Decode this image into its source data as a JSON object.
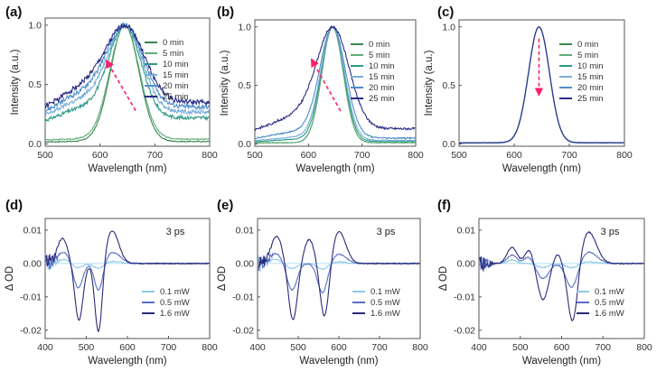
{
  "chart_data": [
    {
      "panel": "(a)",
      "type": "line",
      "xlabel": "Wavelength (nm)",
      "ylabel": "Intensity (a.u.)",
      "xlim": [
        500,
        800
      ],
      "ylim": [
        -0.02,
        1.06
      ],
      "xticks": [
        "500",
        "600",
        "700",
        "800"
      ],
      "yticks": [
        "0.0",
        "0.5",
        "1.0"
      ],
      "peak_nm": 645,
      "arrow": {
        "from": [
          665,
          0.28
        ],
        "to": [
          612,
          0.7
        ],
        "color": "#ff1f6b"
      },
      "series": [
        {
          "name": "0 min",
          "color": "#3c8550",
          "baseline": 0.02,
          "width": 26,
          "wing": 0.0,
          "noise": 0.004
        },
        {
          "name": "5 min",
          "color": "#5fae7a",
          "baseline": 0.04,
          "width": 27,
          "wing": 0.0,
          "noise": 0.005
        },
        {
          "name": "10 min",
          "color": "#2a9a86",
          "baseline": 0.22,
          "width": 29,
          "wing": 0.12,
          "noise": 0.015
        },
        {
          "name": "15 min",
          "color": "#7aaed8",
          "baseline": 0.27,
          "width": 31,
          "wing": 0.16,
          "noise": 0.018
        },
        {
          "name": "20 min",
          "color": "#4f8ec9",
          "baseline": 0.31,
          "width": 33,
          "wing": 0.19,
          "noise": 0.02
        },
        {
          "name": "25 min",
          "color": "#2b2d86",
          "baseline": 0.35,
          "width": 35,
          "wing": 0.22,
          "noise": 0.022
        }
      ]
    },
    {
      "panel": "(b)",
      "type": "line",
      "xlabel": "Wavelength (nm)",
      "ylabel": "Intensity (a.u.)",
      "xlim": [
        500,
        800
      ],
      "ylim": [
        -0.02,
        1.06
      ],
      "xticks": [
        "500",
        "600",
        "700",
        "800"
      ],
      "yticks": [
        "0.0",
        "0.5",
        "1.0"
      ],
      "peak_nm": 645,
      "arrow": {
        "from": [
          660,
          0.28
        ],
        "to": [
          606,
          0.72
        ],
        "color": "#ff1f6b"
      },
      "series": [
        {
          "name": "0 min",
          "color": "#3c8550",
          "baseline": 0.01,
          "width": 20,
          "wing": 0.0,
          "noise": 0.002
        },
        {
          "name": "5 min",
          "color": "#5fae7a",
          "baseline": 0.01,
          "width": 20,
          "wing": 0.0,
          "noise": 0.002
        },
        {
          "name": "10 min",
          "color": "#2a9a86",
          "baseline": 0.02,
          "width": 21,
          "wing": 0.02,
          "noise": 0.003
        },
        {
          "name": "15 min",
          "color": "#7aaed8",
          "baseline": 0.03,
          "width": 22,
          "wing": 0.03,
          "noise": 0.004
        },
        {
          "name": "20 min",
          "color": "#4f8ec9",
          "baseline": 0.05,
          "width": 24,
          "wing": 0.06,
          "noise": 0.006
        },
        {
          "name": "25 min",
          "color": "#2b2d86",
          "baseline": 0.13,
          "width": 30,
          "wing": 0.13,
          "noise": 0.01
        }
      ]
    },
    {
      "panel": "(c)",
      "type": "line",
      "xlabel": "Wavelength (nm)",
      "ylabel": "Intensity (a.u.)",
      "xlim": [
        500,
        800
      ],
      "ylim": [
        -0.02,
        1.06
      ],
      "xticks": [
        "500",
        "600",
        "700",
        "800"
      ],
      "yticks": [
        "0.0",
        "0.5",
        "1.0"
      ],
      "peak_nm": 645,
      "arrow": {
        "from": [
          645,
          0.9
        ],
        "to": [
          645,
          0.42
        ],
        "color": "#ff1f6b"
      },
      "series": [
        {
          "name": "0 min",
          "color": "#3c8550",
          "baseline": 0.01,
          "width": 19,
          "wing": 0.0,
          "noise": 0.002
        },
        {
          "name": "5 min",
          "color": "#5fae7a",
          "baseline": 0.01,
          "width": 19,
          "wing": 0.0,
          "noise": 0.002
        },
        {
          "name": "10 min",
          "color": "#2a9a86",
          "baseline": 0.01,
          "width": 19,
          "wing": 0.0,
          "noise": 0.002
        },
        {
          "name": "15 min",
          "color": "#7aaed8",
          "baseline": 0.01,
          "width": 19,
          "wing": 0.0,
          "noise": 0.002
        },
        {
          "name": "20 min",
          "color": "#4f8ec9",
          "baseline": 0.01,
          "width": 19,
          "wing": 0.0,
          "noise": 0.002
        },
        {
          "name": "25 min",
          "color": "#2b2d86",
          "baseline": 0.01,
          "width": 19,
          "wing": 0.0,
          "noise": 0.002
        }
      ]
    },
    {
      "panel": "(d)",
      "type": "line",
      "xlabel": "Wavelength (nm)",
      "ylabel": "Δ OD",
      "xlim": [
        400,
        800
      ],
      "ylim": [
        -0.0225,
        0.0135
      ],
      "xticks": [
        "400",
        "500",
        "600",
        "700",
        "800"
      ],
      "yticks": [
        "0.01",
        "0.00",
        "-0.01",
        "-0.02"
      ],
      "annotation": "3 ps",
      "series": [
        {
          "name": "0.1 mW",
          "color": "#8ec9ea",
          "features": [
            [
              445,
              0.0012,
              14
            ],
            [
              480,
              -0.0013,
              12
            ],
            [
              530,
              -0.0015,
              12
            ],
            [
              565,
              0.0006,
              18
            ]
          ]
        },
        {
          "name": "0.5 mW",
          "color": "#5a6fc2",
          "features": [
            [
              445,
              0.0034,
              14
            ],
            [
              480,
              -0.0075,
              11
            ],
            [
              530,
              -0.0085,
              10
            ],
            [
              565,
              0.0033,
              18
            ]
          ]
        },
        {
          "name": "1.6 mW",
          "color": "#2c2a78",
          "features": [
            [
              442,
              0.0075,
              13
            ],
            [
              482,
              -0.017,
              10
            ],
            [
              530,
              -0.0215,
              9
            ],
            [
              563,
              0.0098,
              16
            ]
          ]
        }
      ]
    },
    {
      "panel": "(e)",
      "type": "line",
      "xlabel": "Wavelength (nm)",
      "ylabel": "Δ OD",
      "xlim": [
        400,
        800
      ],
      "ylim": [
        -0.0225,
        0.0135
      ],
      "xticks": [
        "400",
        "500",
        "600",
        "700",
        "800"
      ],
      "yticks": [
        "0.01",
        "0.00",
        "-0.01",
        "-0.02"
      ],
      "annotation": "3 ps",
      "series": [
        {
          "name": "0.1 mW",
          "color": "#8ec9ea",
          "features": [
            [
              445,
              0.0012,
              14
            ],
            [
              485,
              -0.0015,
              13
            ],
            [
              560,
              -0.0017,
              13
            ],
            [
              600,
              0.0005,
              18
            ]
          ]
        },
        {
          "name": "0.5 mW",
          "color": "#5a6fc2",
          "features": [
            [
              445,
              0.003,
              14
            ],
            [
              485,
              -0.008,
              12
            ],
            [
              560,
              -0.009,
              12
            ],
            [
              600,
              0.0028,
              18
            ]
          ]
        },
        {
          "name": "1.6 mW",
          "color": "#2c2a78",
          "features": [
            [
              447,
              0.0082,
              14
            ],
            [
              487,
              -0.017,
              11
            ],
            [
              527,
              0.0072,
              13
            ],
            [
              565,
              -0.0168,
              11
            ],
            [
              600,
              0.0096,
              17
            ]
          ]
        }
      ]
    },
    {
      "panel": "(f)",
      "type": "line",
      "xlabel": "Wavelength (nm)",
      "ylabel": "Δ OD",
      "xlim": [
        400,
        800
      ],
      "ylim": [
        -0.0225,
        0.0135
      ],
      "xticks": [
        "400",
        "500",
        "600",
        "700",
        "800"
      ],
      "yticks": [
        "0.01",
        "0.00",
        "-0.01",
        "-0.02"
      ],
      "annotation": "3 ps",
      "series": [
        {
          "name": "0.1 mW",
          "color": "#8ec9ea",
          "features": [
            [
              480,
              0.001,
              12
            ],
            [
              555,
              -0.0012,
              14
            ],
            [
              625,
              -0.0014,
              14
            ],
            [
              665,
              0.0005,
              20
            ]
          ]
        },
        {
          "name": "0.5 mW",
          "color": "#5a6fc2",
          "features": [
            [
              480,
              0.0025,
              12
            ],
            [
              520,
              0.002,
              10
            ],
            [
              555,
              -0.0045,
              14
            ],
            [
              625,
              -0.0075,
              14
            ],
            [
              665,
              0.0035,
              20
            ]
          ]
        },
        {
          "name": "1.6 mW",
          "color": "#2c2a78",
          "features": [
            [
              480,
              0.0048,
              12
            ],
            [
              522,
              0.0042,
              10
            ],
            [
              555,
              -0.0108,
              13
            ],
            [
              590,
              0.003,
              10
            ],
            [
              627,
              -0.0183,
              12
            ],
            [
              665,
              0.0095,
              19
            ]
          ]
        }
      ]
    }
  ]
}
